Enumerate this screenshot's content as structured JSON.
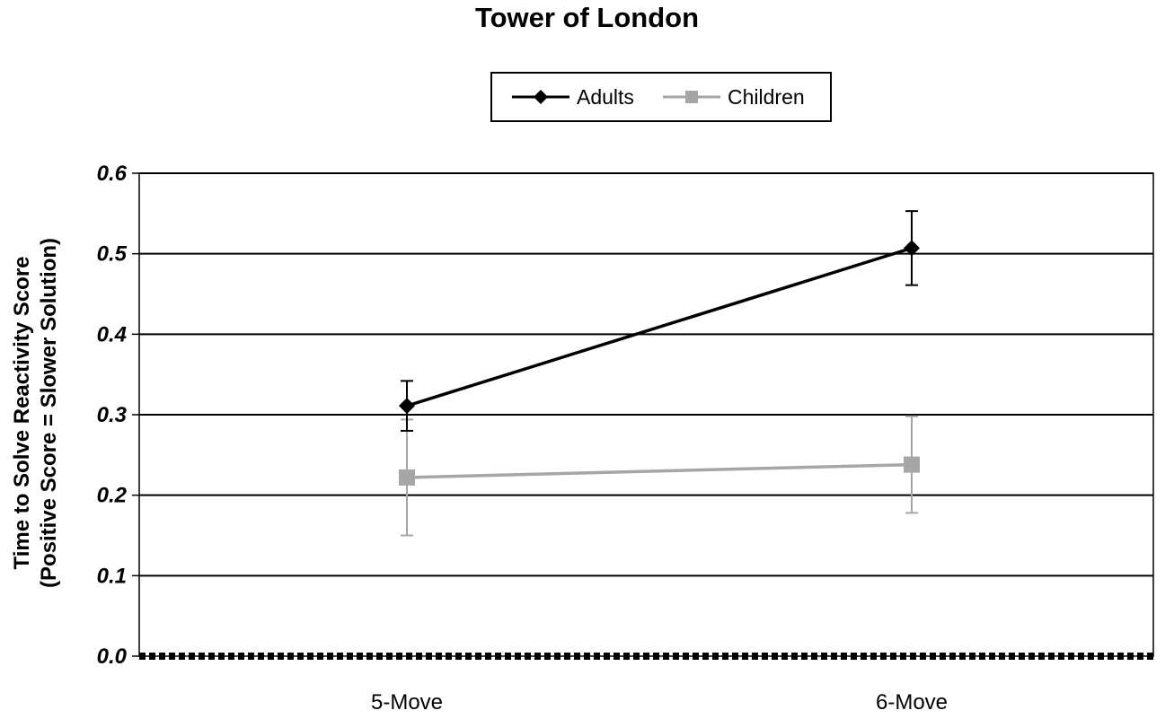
{
  "chart_data": {
    "type": "line",
    "title": "Tower of London",
    "ylabel": [
      "Time to Solve Reactivity  Score",
      "(Positive Score = Slower Solution)"
    ],
    "xlabel": "",
    "categories": [
      "5-Move",
      "6-Move"
    ],
    "ylim": [
      0.0,
      0.6
    ],
    "yticks": [
      "0.0",
      "0.1",
      "0.2",
      "0.3",
      "0.4",
      "0.5",
      "0.6"
    ],
    "grid": true,
    "legend_position": "top",
    "series": [
      {
        "name": "Adults",
        "values": [
          0.311,
          0.507
        ],
        "error": [
          0.031,
          0.046
        ],
        "color": "#000000",
        "marker": "diamond"
      },
      {
        "name": "Children",
        "values": [
          0.222,
          0.238
        ],
        "error": [
          0.072,
          0.06
        ],
        "color": "#a6a6a6",
        "marker": "square"
      }
    ]
  }
}
